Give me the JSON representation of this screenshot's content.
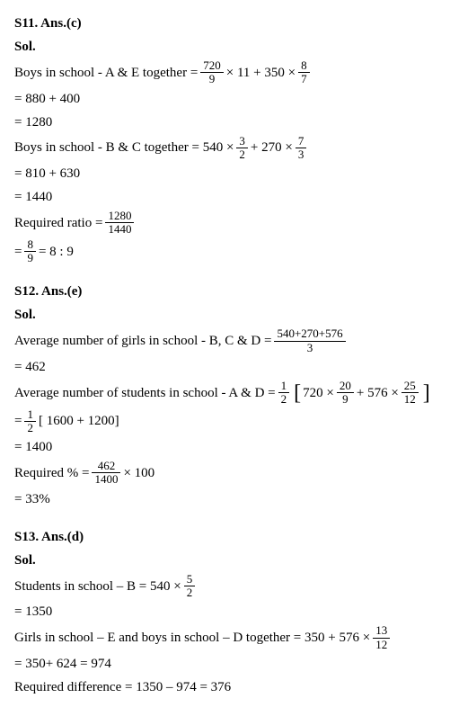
{
  "s11": {
    "header": "S11. Ans.(c)",
    "sol": "Sol.",
    "line1_pre": "Boys in school - A & E together = ",
    "frac1": {
      "num": "720",
      "den": "9"
    },
    "line1_mid": " × 11 + 350 × ",
    "frac2": {
      "num": "8",
      "den": "7"
    },
    "line2": "= 880 + 400",
    "line3": "= 1280",
    "line4_pre": "Boys in school - B & C together = 540 × ",
    "frac3": {
      "num": "3",
      "den": "2"
    },
    "line4_mid": " + 270 × ",
    "frac4": {
      "num": "7",
      "den": "3"
    },
    "line5": "= 810 + 630",
    "line6": "= 1440",
    "line7_pre": "Required ratio = ",
    "frac5": {
      "num": "1280",
      "den": "1440"
    },
    "line8_pre": "= ",
    "frac6": {
      "num": "8",
      "den": "9"
    },
    "line8_post": " = 8 : 9"
  },
  "s12": {
    "header": "S12. Ans.(e)",
    "sol": "Sol.",
    "line1_pre": "Average number of girls in school - B, C & D = ",
    "frac1": {
      "num": "540+270+576",
      "den": "3"
    },
    "line2": "= 462",
    "line3_pre": "Average number of students in school - A & D = ",
    "frac2": {
      "num": "1",
      "den": "2"
    },
    "line3_mid1": " 720 × ",
    "frac3": {
      "num": "20",
      "den": "9"
    },
    "line3_mid2": " + 576 × ",
    "frac4": {
      "num": "25",
      "den": "12"
    },
    "line4_pre": "= ",
    "frac5": {
      "num": "1",
      "den": "2"
    },
    "line4_post": " [ 1600 + 1200]",
    "line5": "= 1400",
    "line6_pre": "Required % = ",
    "frac6": {
      "num": "462",
      "den": "1400"
    },
    "line6_post": " × 100",
    "line7": "= 33%"
  },
  "s13": {
    "header": "S13. Ans.(d)",
    "sol": "Sol.",
    "line1_pre": "Students in school – B = 540 × ",
    "frac1": {
      "num": "5",
      "den": "2"
    },
    "line2": "= 1350",
    "line3_pre": "Girls in school – E and boys in school – D together = 350 + 576 × ",
    "frac2": {
      "num": "13",
      "den": "12"
    },
    "line4": "= 350+ 624 = 974",
    "line5": "Required difference = 1350 – 974 = 376"
  }
}
